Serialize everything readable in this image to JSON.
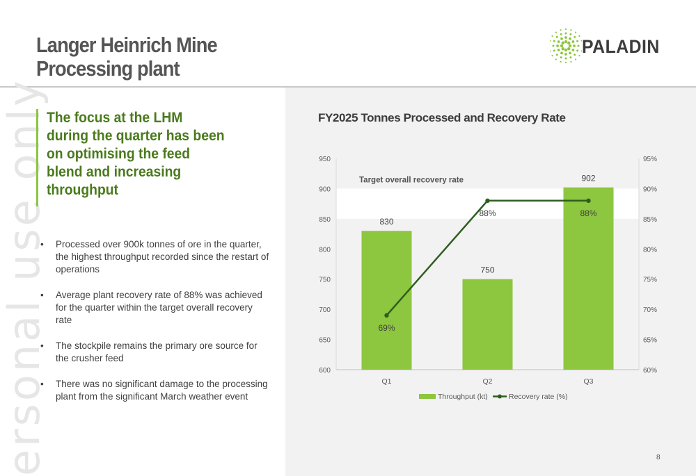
{
  "header": {
    "title_line1": "Langer Heinrich Mine",
    "title_line2": "Processing plant",
    "logo_text": "PALADIN"
  },
  "watermark": "ersonal use only",
  "focus_text": "The focus at the LHM during the quarter has been on optimising the feed blend and increasing throughput",
  "bullets": [
    "Processed over 900k tonnes of ore in the quarter, the highest throughput recorded since the restart of operations",
    "Average plant recovery rate of 88% was achieved for the quarter within the target overall recovery rate",
    "The stockpile remains the primary ore source for the crusher feed",
    "There was no significant damage to the processing plant from the significant March weather event"
  ],
  "bullet_symbol": "•",
  "page_number": "8",
  "colors": {
    "bar": "#8dc63f",
    "line": "#2e5e1e",
    "focus_text": "#4a7a1c",
    "band": "#ffffff"
  },
  "chart_data": {
    "type": "bar",
    "title": "FY2025 Tonnes Processed and Recovery Rate",
    "categories": [
      "Q1",
      "Q2",
      "Q3"
    ],
    "series": [
      {
        "name": "Throughput (kt)",
        "type": "bar",
        "axis": "left",
        "values": [
          830,
          750,
          902
        ],
        "labels": [
          "830",
          "750",
          "902"
        ]
      },
      {
        "name": "Recovery rate (%)",
        "type": "line",
        "axis": "right",
        "values": [
          69,
          88,
          88
        ],
        "labels": [
          "69%",
          "88%",
          "88%"
        ]
      }
    ],
    "y_left": {
      "min": 600,
      "max": 950,
      "ticks": [
        "600",
        "650",
        "700",
        "750",
        "800",
        "850",
        "900",
        "950"
      ]
    },
    "y_right": {
      "min": 60,
      "max": 95,
      "ticks": [
        "60%",
        "65%",
        "70%",
        "75%",
        "80%",
        "85%",
        "90%",
        "95%"
      ]
    },
    "target_band": {
      "label": "Target overall recovery rate",
      "from": 85,
      "to": 90,
      "axis": "right"
    },
    "legend_position": "bottom",
    "grid": false
  }
}
